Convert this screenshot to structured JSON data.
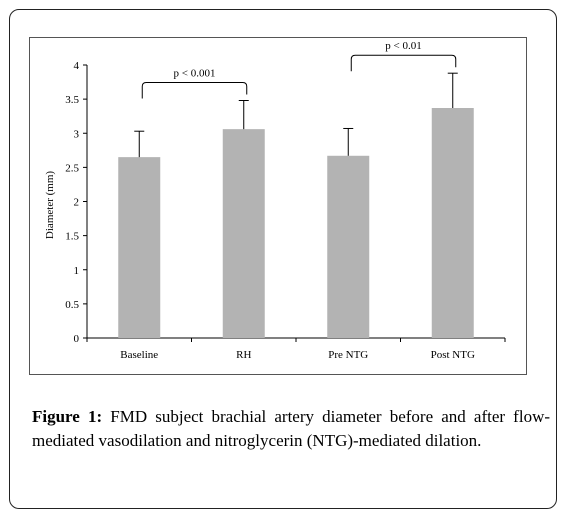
{
  "chart_data": {
    "type": "bar",
    "categories": [
      "Baseline",
      "RH",
      "Pre NTG",
      "Post NTG"
    ],
    "values": [
      2.65,
      3.06,
      2.67,
      3.37
    ],
    "error": [
      0.38,
      0.42,
      0.4,
      0.51
    ],
    "ylabel": "Diameter (mm)",
    "ylim": [
      0,
      4
    ],
    "yticks": [
      "0",
      "0.5",
      "1",
      "1.5",
      "2",
      "2.5",
      "3",
      "3.5",
      "4"
    ],
    "grid": false,
    "legend": "none",
    "bar_color": "#b3b3b3",
    "annotations": [
      {
        "text": "p < 0.001",
        "from": "Baseline",
        "to": "RH"
      },
      {
        "text": "p < 0.01",
        "from": "Pre NTG",
        "to": "Post NTG"
      }
    ]
  },
  "caption": {
    "label": "Figure 1:",
    "text": " FMD subject brachial artery diameter before and after flow-mediated vasodilation and nitroglycerin (NTG)-mediated dilation."
  }
}
